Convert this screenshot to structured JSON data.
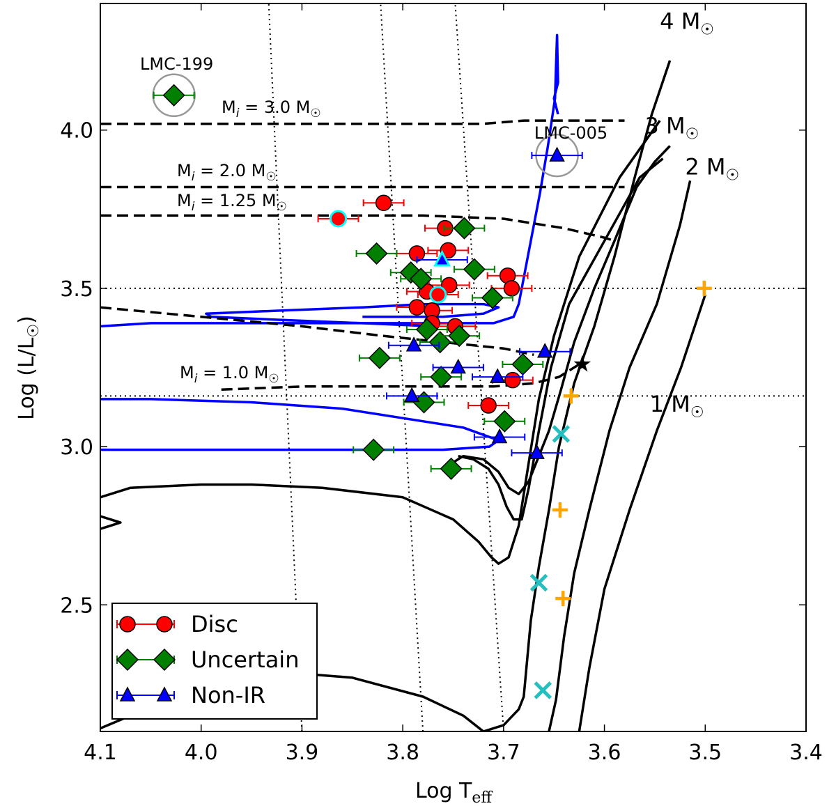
{
  "chart_data": {
    "type": "scatter",
    "xlabel": "Log T",
    "xlabel_sub": "eff",
    "ylabel": "Log (L/L",
    "ylabel_sym": "☉",
    "ylabel_close": ")",
    "xlim": [
      4.1,
      3.4
    ],
    "ylim": [
      2.1,
      4.4
    ],
    "x_inverted": true,
    "x_ticks": [
      "4.1",
      "4.0",
      "3.9",
      "3.8",
      "3.7",
      "3.6",
      "3.5",
      "3.4"
    ],
    "y_ticks": [
      "2.5",
      "3.0",
      "3.5",
      "4.0"
    ],
    "legend_position": "lower-left",
    "colors": {
      "disc": "#ff0000",
      "uncertain": "#007f00",
      "nonir": "#0000ff",
      "blue_track": "#0000ff",
      "cross_cyan": "#26bfbf",
      "plus_orange": "#ffa500",
      "circle_gray": "#999999",
      "highlight": "#00ffff"
    },
    "series": [
      {
        "name": "Disc",
        "marker": "circle",
        "points": [
          {
            "x": 3.819,
            "y": 3.77,
            "xerr": 0.02
          },
          {
            "x": 3.864,
            "y": 3.72,
            "xerr": 0.02,
            "highlight": true
          },
          {
            "x": 3.758,
            "y": 3.69,
            "xerr": 0.02
          },
          {
            "x": 3.755,
            "y": 3.62,
            "xerr": 0.02
          },
          {
            "x": 3.786,
            "y": 3.61,
            "xerr": 0.02
          },
          {
            "x": 3.696,
            "y": 3.54,
            "xerr": 0.02
          },
          {
            "x": 3.754,
            "y": 3.51,
            "xerr": 0.02
          },
          {
            "x": 3.692,
            "y": 3.5,
            "xerr": 0.02
          },
          {
            "x": 3.776,
            "y": 3.49,
            "xerr": 0.02
          },
          {
            "x": 3.765,
            "y": 3.48,
            "xerr": 0.02,
            "highlight": true
          },
          {
            "x": 3.786,
            "y": 3.44,
            "xerr": 0.02
          },
          {
            "x": 3.771,
            "y": 3.43,
            "xerr": 0.02
          },
          {
            "x": 3.771,
            "y": 3.39,
            "xerr": 0.02
          },
          {
            "x": 3.748,
            "y": 3.38,
            "xerr": 0.02
          },
          {
            "x": 3.691,
            "y": 3.21,
            "xerr": 0.02
          },
          {
            "x": 3.715,
            "y": 3.13,
            "xerr": 0.02
          }
        ]
      },
      {
        "name": "Uncertain",
        "marker": "diamond",
        "points": [
          {
            "x": 4.027,
            "y": 4.11,
            "xerr": 0.02
          },
          {
            "x": 3.739,
            "y": 3.69,
            "xerr": 0.02
          },
          {
            "x": 3.826,
            "y": 3.61,
            "xerr": 0.02
          },
          {
            "x": 3.729,
            "y": 3.56,
            "xerr": 0.02
          },
          {
            "x": 3.792,
            "y": 3.55,
            "xerr": 0.02
          },
          {
            "x": 3.782,
            "y": 3.53,
            "xerr": 0.02
          },
          {
            "x": 3.711,
            "y": 3.47,
            "xerr": 0.02
          },
          {
            "x": 3.776,
            "y": 3.37,
            "xerr": 0.02
          },
          {
            "x": 3.763,
            "y": 3.33,
            "xerr": 0.02
          },
          {
            "x": 3.744,
            "y": 3.35,
            "xerr": 0.02
          },
          {
            "x": 3.823,
            "y": 3.28,
            "xerr": 0.02
          },
          {
            "x": 3.681,
            "y": 3.26,
            "xerr": 0.02
          },
          {
            "x": 3.762,
            "y": 3.22,
            "xerr": 0.02
          },
          {
            "x": 3.779,
            "y": 3.14,
            "xerr": 0.02
          },
          {
            "x": 3.699,
            "y": 3.08,
            "xerr": 0.02
          },
          {
            "x": 3.829,
            "y": 2.99,
            "xerr": 0.02
          },
          {
            "x": 3.752,
            "y": 2.93,
            "xerr": 0.02
          }
        ]
      },
      {
        "name": "Non-IR",
        "marker": "triangle",
        "points": [
          {
            "x": 3.647,
            "y": 3.92,
            "xerr": 0.025
          },
          {
            "x": 3.761,
            "y": 3.59,
            "xerr": 0.025,
            "highlight": true
          },
          {
            "x": 3.789,
            "y": 3.32,
            "xerr": 0.025
          },
          {
            "x": 3.659,
            "y": 3.3,
            "xerr": 0.025
          },
          {
            "x": 3.745,
            "y": 3.25,
            "xerr": 0.025
          },
          {
            "x": 3.706,
            "y": 3.22,
            "xerr": 0.025
          },
          {
            "x": 3.791,
            "y": 3.16,
            "xerr": 0.025
          },
          {
            "x": 3.704,
            "y": 3.03,
            "xerr": 0.025
          },
          {
            "x": 3.667,
            "y": 2.98,
            "xerr": 0.025
          }
        ]
      }
    ],
    "dashed_tracks": [
      {
        "label": "M",
        "label_sub": "i",
        "label_mass": " = 3.0 M",
        "points": [
          [
            4.1,
            4.02
          ],
          [
            3.9,
            4.02
          ],
          [
            3.72,
            4.02
          ],
          [
            3.68,
            4.03
          ],
          [
            3.58,
            4.03
          ]
        ]
      },
      {
        "label": "M",
        "label_sub": "i",
        "label_mass": " = 2.0 M",
        "points": [
          [
            4.1,
            3.82
          ],
          [
            3.9,
            3.82
          ],
          [
            3.75,
            3.82
          ],
          [
            3.65,
            3.82
          ],
          [
            3.58,
            3.82
          ]
        ]
      },
      {
        "label": "M",
        "label_sub": "i",
        "label_mass": " = 1.25 M",
        "points": [
          [
            4.1,
            3.73
          ],
          [
            3.88,
            3.73
          ],
          [
            3.78,
            3.73
          ],
          [
            3.7,
            3.72
          ],
          [
            3.64,
            3.69
          ],
          [
            3.6,
            3.66
          ],
          [
            3.59,
            3.65
          ]
        ]
      },
      {
        "points": [
          [
            4.1,
            3.44
          ],
          [
            4.0,
            3.41
          ],
          [
            3.9,
            3.38
          ],
          [
            3.82,
            3.35
          ],
          [
            3.76,
            3.33
          ],
          [
            3.7,
            3.31
          ],
          [
            3.67,
            3.29
          ]
        ]
      },
      {
        "label": "M",
        "label_sub": "i",
        "label_mass": " = 1.0 M",
        "points": [
          [
            3.98,
            3.18
          ],
          [
            3.9,
            3.19
          ],
          [
            3.82,
            3.19
          ],
          [
            3.76,
            3.19
          ],
          [
            3.71,
            3.19
          ],
          [
            3.67,
            3.2
          ],
          [
            3.645,
            3.22
          ],
          [
            3.625,
            3.26
          ]
        ]
      }
    ],
    "black_tracks": [
      {
        "points": [
          [
            4.1,
            2.11
          ],
          [
            4.07,
            2.15
          ],
          [
            4.0,
            2.26
          ],
          [
            3.93,
            2.29
          ],
          [
            3.85,
            2.27
          ],
          [
            3.78,
            2.21
          ],
          [
            3.74,
            2.15
          ],
          [
            3.72,
            2.1
          ]
        ]
      },
      {
        "points": [
          [
            3.72,
            2.1
          ],
          [
            3.7,
            2.12
          ],
          [
            3.685,
            2.17
          ],
          [
            3.68,
            2.21
          ],
          [
            3.673,
            2.45
          ],
          [
            3.665,
            2.62
          ],
          [
            3.655,
            2.8
          ],
          [
            3.645,
            3.0
          ],
          [
            3.63,
            3.2
          ],
          [
            3.61,
            3.38
          ],
          [
            3.59,
            3.6
          ],
          [
            3.57,
            3.85
          ],
          [
            3.553,
            4.05
          ],
          [
            3.535,
            4.22
          ]
        ]
      },
      {
        "points": [
          [
            4.1,
            2.84
          ],
          [
            4.07,
            2.87
          ],
          [
            4.0,
            2.88
          ],
          [
            3.95,
            2.88
          ],
          [
            3.88,
            2.87
          ],
          [
            3.8,
            2.84
          ],
          [
            3.75,
            2.77
          ],
          [
            3.725,
            2.7
          ],
          [
            3.712,
            2.65
          ],
          [
            3.705,
            2.63
          ],
          [
            3.695,
            2.65
          ],
          [
            3.685,
            2.75
          ],
          [
            3.675,
            2.95
          ],
          [
            3.665,
            3.15
          ],
          [
            3.65,
            3.35
          ],
          [
            3.625,
            3.6
          ],
          [
            3.585,
            3.85
          ],
          [
            3.545,
            4.03
          ]
        ]
      },
      {
        "points": [
          [
            3.745,
            2.97
          ],
          [
            3.73,
            2.96
          ],
          [
            3.715,
            2.93
          ],
          [
            3.705,
            2.88
          ],
          [
            3.697,
            2.81
          ],
          [
            3.69,
            2.77
          ],
          [
            3.682,
            2.77
          ],
          [
            3.675,
            2.87
          ],
          [
            3.665,
            3.05
          ],
          [
            3.653,
            3.25
          ],
          [
            3.635,
            3.45
          ],
          [
            3.6,
            3.65
          ],
          [
            3.565,
            3.85
          ],
          [
            3.542,
            3.91
          ]
        ]
      },
      {
        "points": [
          [
            3.755,
            2.94
          ],
          [
            3.74,
            2.97
          ],
          [
            3.72,
            2.96
          ],
          [
            3.705,
            2.92
          ],
          [
            3.695,
            2.87
          ],
          [
            3.685,
            2.85
          ],
          [
            3.675,
            2.89
          ],
          [
            3.665,
            2.97
          ],
          [
            3.655,
            3.05
          ],
          [
            3.643,
            3.18
          ],
          [
            3.63,
            3.33
          ],
          [
            3.61,
            3.5
          ],
          [
            3.59,
            3.65
          ],
          [
            3.568,
            3.82
          ],
          [
            3.55,
            3.9
          ],
          [
            3.535,
            3.95
          ]
        ]
      },
      {
        "points": [
          [
            3.655,
            2.1
          ],
          [
            3.648,
            2.2
          ],
          [
            3.64,
            2.4
          ],
          [
            3.63,
            2.6
          ],
          [
            3.615,
            2.8
          ],
          [
            3.595,
            3.05
          ],
          [
            3.575,
            3.25
          ],
          [
            3.548,
            3.45
          ],
          [
            3.525,
            3.7
          ],
          [
            3.515,
            3.84
          ]
        ]
      },
      {
        "points": [
          [
            3.625,
            2.1
          ],
          [
            3.615,
            2.3
          ],
          [
            3.6,
            2.55
          ],
          [
            3.575,
            2.8
          ],
          [
            3.548,
            3.05
          ],
          [
            3.524,
            3.25
          ],
          [
            3.5,
            3.48
          ]
        ]
      },
      {
        "points": [
          [
            4.1,
            2.78
          ],
          [
            4.09,
            2.77
          ],
          [
            4.08,
            2.76
          ],
          [
            4.09,
            2.75
          ],
          [
            4.1,
            2.74
          ]
        ]
      }
    ],
    "blue_track": [
      [
        4.1,
        3.38
      ],
      [
        4.05,
        3.39
      ],
      [
        3.95,
        3.39
      ],
      [
        3.85,
        3.39
      ],
      [
        3.79,
        3.39
      ],
      [
        3.75,
        3.39
      ],
      [
        3.71,
        3.39
      ],
      [
        3.69,
        3.41
      ],
      [
        3.685,
        3.45
      ],
      [
        3.676,
        3.6
      ],
      [
        3.664,
        3.8
      ],
      [
        3.656,
        3.95
      ],
      [
        3.649,
        4.1
      ],
      [
        3.648,
        4.2
      ],
      [
        3.647,
        4.3
      ],
      [
        3.646,
        4.15
      ],
      [
        3.65,
        4.1
      ],
      [
        3.65,
        4.1
      ],
      [
        3.646,
        4.05
      ]
    ],
    "blue_loop_upper": [
      [
        3.77,
        3.38
      ],
      [
        3.84,
        3.39
      ],
      [
        3.92,
        3.4
      ],
      [
        3.99,
        3.41
      ],
      [
        3.995,
        3.42
      ],
      [
        3.92,
        3.43
      ],
      [
        3.84,
        3.44
      ],
      [
        3.78,
        3.45
      ],
      [
        3.72,
        3.45
      ],
      [
        3.705,
        3.44
      ],
      [
        3.72,
        3.42
      ],
      [
        3.76,
        3.41
      ],
      [
        3.8,
        3.41
      ],
      [
        3.83,
        3.41
      ],
      [
        3.84,
        3.41
      ]
    ],
    "blue_loop_lower": [
      [
        4.1,
        3.15
      ],
      [
        4.05,
        3.15
      ],
      [
        3.95,
        3.14
      ],
      [
        3.86,
        3.12
      ],
      [
        3.8,
        3.09
      ],
      [
        3.74,
        3.06
      ],
      [
        3.705,
        3.02
      ],
      [
        3.714,
        3.0
      ],
      [
        3.76,
        2.99
      ],
      [
        3.85,
        2.99
      ],
      [
        3.95,
        2.99
      ],
      [
        4.05,
        2.99
      ],
      [
        4.1,
        2.99
      ]
    ],
    "dotted_verticals": [
      {
        "points": [
          [
            3.9,
            2.1
          ],
          [
            3.933,
            4.4
          ]
        ]
      },
      {
        "points": [
          [
            3.78,
            2.1
          ],
          [
            3.822,
            4.4
          ]
        ]
      },
      {
        "points": [
          [
            3.7,
            2.1
          ],
          [
            3.748,
            4.4
          ]
        ]
      }
    ],
    "dotted_horizontals": [
      3.5,
      3.16
    ],
    "star": {
      "x": 3.622,
      "y": 3.26
    },
    "crosses": [
      {
        "x": 3.643,
        "y": 3.04
      },
      {
        "x": 3.665,
        "y": 2.57
      },
      {
        "x": 3.661,
        "y": 2.23
      }
    ],
    "pluses": [
      {
        "x": 3.633,
        "y": 3.16
      },
      {
        "x": 3.644,
        "y": 2.8
      },
      {
        "x": 3.641,
        "y": 2.52
      },
      {
        "x": 3.501,
        "y": 3.5
      }
    ],
    "highlight_circles": [
      {
        "label": "LMC-199",
        "x": 4.027,
        "y": 4.11
      },
      {
        "label": "LMC-005",
        "x": 3.647,
        "y": 3.92
      }
    ],
    "track_mass_labels": [
      {
        "text": "4 M",
        "x": 3.545,
        "y": 4.32
      },
      {
        "text": "3 M",
        "x": 3.56,
        "y": 3.99
      },
      {
        "text": "2 M",
        "x": 3.52,
        "y": 3.86
      },
      {
        "text": "1 M",
        "x": 3.555,
        "y": 3.11
      }
    ],
    "sun_symbol": "☉"
  }
}
